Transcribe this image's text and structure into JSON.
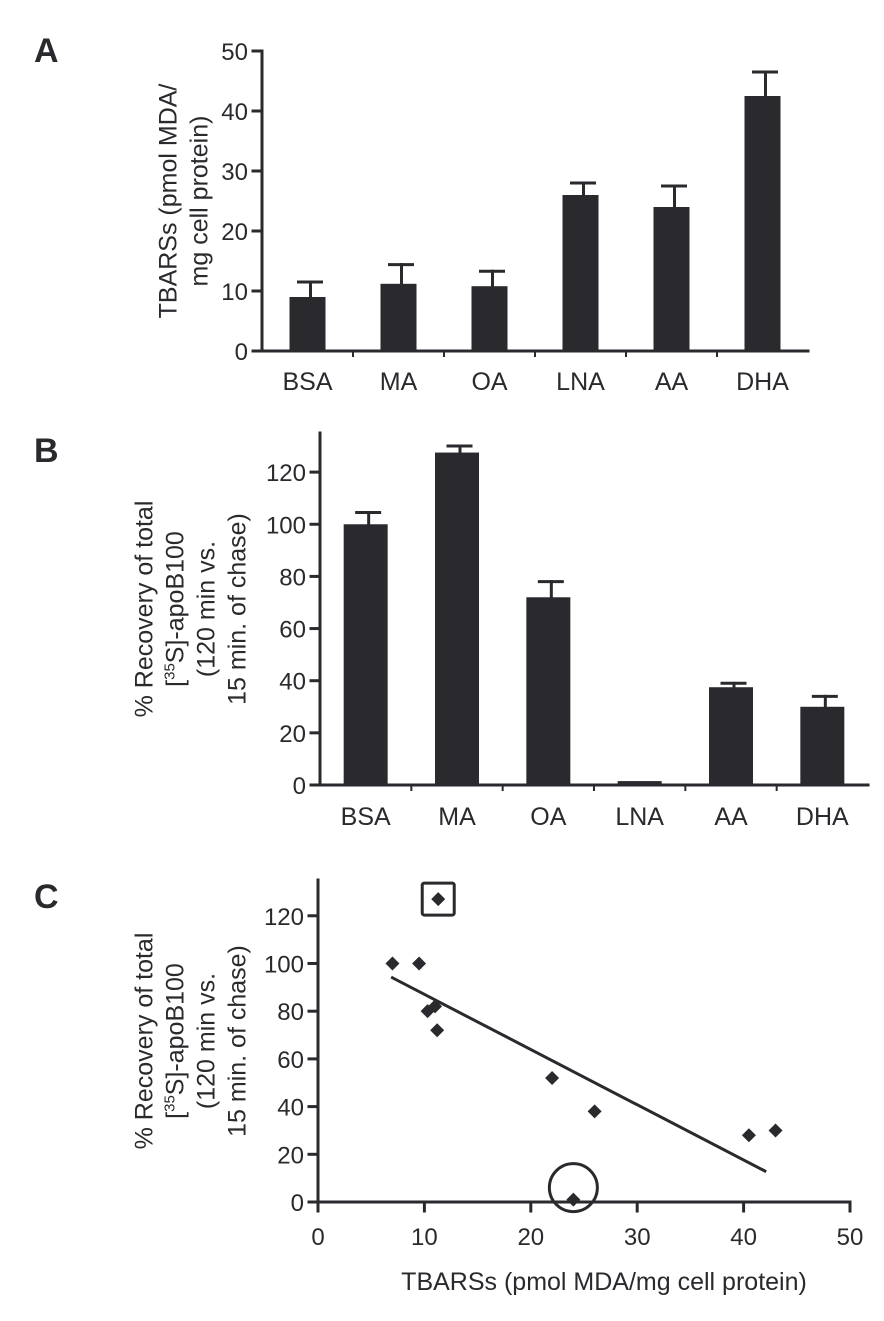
{
  "colors": {
    "ink": "#2a2a2e",
    "bar": "#2a2a2e",
    "background": "#ffffff"
  },
  "chart_data": [
    {
      "panel": "A",
      "type": "bar",
      "categories": [
        "BSA",
        "MA",
        "OA",
        "LNA",
        "AA",
        "DHA"
      ],
      "values": [
        9,
        11.2,
        10.8,
        26,
        24,
        42.5
      ],
      "error_upper": [
        2.5,
        3.2,
        2.5,
        2,
        3.5,
        4
      ],
      "ylabel_lines": [
        "TBARSs (pmol MDA/",
        "mg cell protein)"
      ],
      "ylim": [
        0,
        50
      ],
      "yticks": [
        0,
        10,
        20,
        30,
        40,
        50
      ],
      "grid": false
    },
    {
      "panel": "B",
      "type": "bar",
      "categories": [
        "BSA",
        "MA",
        "OA",
        "LNA",
        "AA",
        "DHA"
      ],
      "values": [
        100,
        127.5,
        72,
        1.5,
        37.5,
        30
      ],
      "error_upper": [
        4.5,
        2.5,
        6,
        0,
        1.5,
        4
      ],
      "ylabel_lines": [
        "% Recovery of total",
        "[35S]-apoB100",
        "(120 min vs.",
        "15 min. of chase)"
      ],
      "ylim": [
        0,
        135
      ],
      "yticks": [
        0,
        20,
        40,
        60,
        80,
        100,
        120
      ],
      "grid": false
    },
    {
      "panel": "C",
      "type": "scatter",
      "points": [
        {
          "x": 7,
          "y": 100
        },
        {
          "x": 9.5,
          "y": 100
        },
        {
          "x": 10.3,
          "y": 80
        },
        {
          "x": 11,
          "y": 82
        },
        {
          "x": 11.2,
          "y": 72
        },
        {
          "x": 11.3,
          "y": 127
        },
        {
          "x": 22,
          "y": 52
        },
        {
          "x": 24,
          "y": 1
        },
        {
          "x": 26,
          "y": 38
        },
        {
          "x": 40.5,
          "y": 28
        },
        {
          "x": 43,
          "y": 30
        }
      ],
      "boxed_point": {
        "x": 11.3,
        "y": 127
      },
      "circled_point": {
        "x": 24,
        "y": 1
      },
      "trendline": {
        "x": [
          7,
          42
        ],
        "y": [
          94,
          13
        ]
      },
      "xlabel": "TBARSs (pmol MDA/mg cell protein)",
      "ylabel_lines": [
        "% Recovery of total",
        "[35S]-apoB100",
        "(120 min vs.",
        "15 min. of chase)"
      ],
      "xlim": [
        0,
        50
      ],
      "ylim": [
        0,
        135
      ],
      "xticks": [
        0,
        10,
        20,
        30,
        40,
        50
      ],
      "yticks": [
        0,
        20,
        40,
        60,
        80,
        100,
        120
      ],
      "grid": false
    }
  ]
}
